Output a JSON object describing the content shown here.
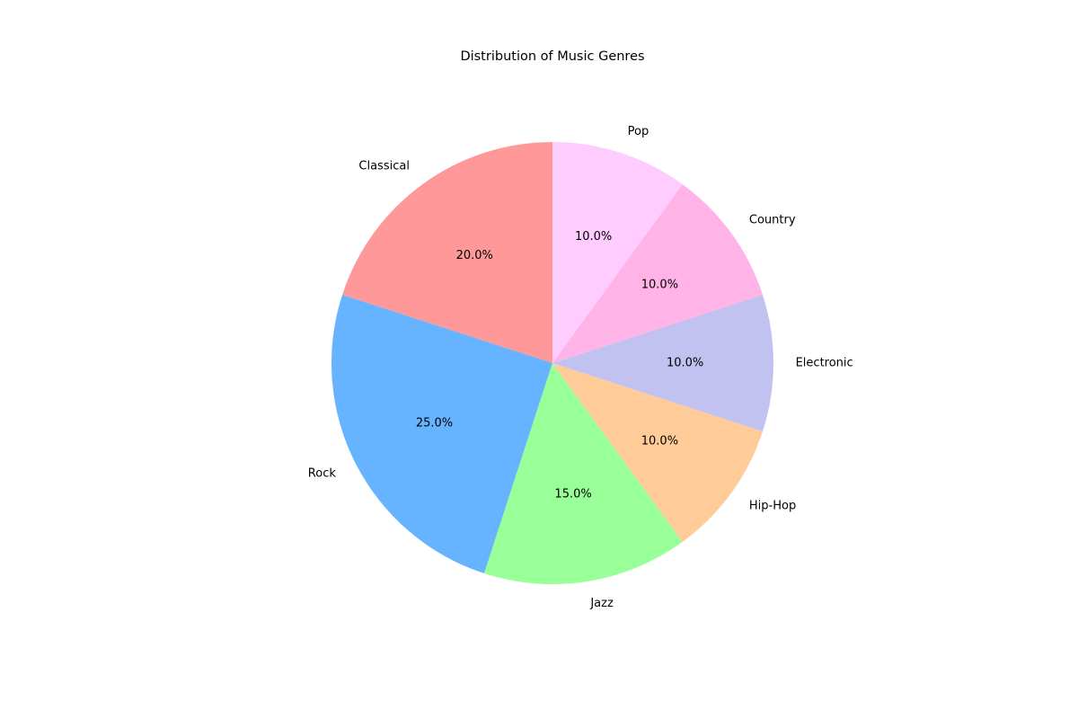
{
  "chart_data": {
    "type": "pie",
    "title": "Distribution of Music Genres",
    "start_angle_deg": 90,
    "direction": "counterclockwise",
    "autopct_format": "{v}%",
    "slices": [
      {
        "label": "Classical",
        "value": 20.0,
        "pct_text": "20.0%",
        "color": "#ff9999"
      },
      {
        "label": "Rock",
        "value": 25.0,
        "pct_text": "25.0%",
        "color": "#66b3ff"
      },
      {
        "label": "Jazz",
        "value": 15.0,
        "pct_text": "15.0%",
        "color": "#99ff99"
      },
      {
        "label": "Hip-Hop",
        "value": 10.0,
        "pct_text": "10.0%",
        "color": "#ffcc99"
      },
      {
        "label": "Electronic",
        "value": 10.0,
        "pct_text": "10.0%",
        "color": "#c2c2f0"
      },
      {
        "label": "Country",
        "value": 10.0,
        "pct_text": "10.0%",
        "color": "#ffb3e6"
      },
      {
        "label": "Pop",
        "value": 10.0,
        "pct_text": "10.0%",
        "color": "#ffccff"
      }
    ],
    "legend": "none"
  }
}
